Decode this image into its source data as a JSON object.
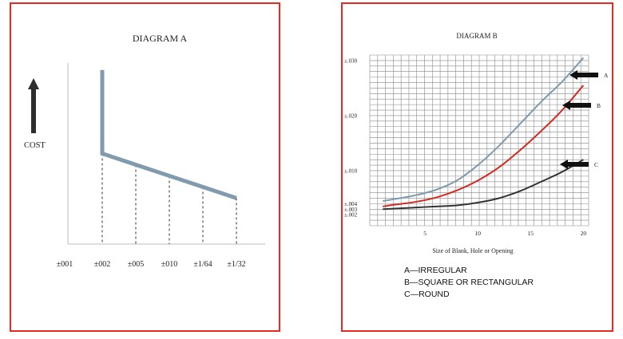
{
  "chart_data": [
    {
      "type": "line",
      "title": "DIAGRAM A",
      "ylabel": "COST",
      "categories": [
        "±001",
        "±002",
        "±005",
        "±010",
        "±1/64",
        "±1/32"
      ],
      "series": [
        {
          "values": [
            null,
            6.5,
            5.7,
            4.9,
            4.1,
            3.3
          ]
        }
      ],
      "vertical_segment_at": "±002",
      "vertical_segment_top": 12.5,
      "dashed_drop_lines": [
        "±002",
        "±005",
        "±010",
        "±1/64",
        "±1/32"
      ],
      "colors": {
        "line": "#7f9bad",
        "arrow": "#2e2e2e"
      }
    },
    {
      "type": "line",
      "title": "DIAGRAM B",
      "xlabel": "Size of Blank, Hole or Opening",
      "ylabel": "",
      "xlim": [
        0,
        20
      ],
      "ylim": [
        0,
        0.031
      ],
      "x_ticks": [
        5,
        10,
        15,
        20
      ],
      "y_ticks": [
        {
          "value": 0.002,
          "label": "±.002"
        },
        {
          "value": 0.003,
          "label": "±.003"
        },
        {
          "value": 0.004,
          "label": "±.004"
        },
        {
          "value": 0.01,
          "label": "±.010"
        },
        {
          "value": 0.02,
          "label": "±.020"
        },
        {
          "value": 0.03,
          "label": "±.030"
        }
      ],
      "grid": true,
      "x": [
        1,
        2,
        4,
        6,
        8,
        10,
        12,
        14,
        16,
        18,
        20
      ],
      "series": [
        {
          "name": "A",
          "color": "#7f9bad",
          "values": [
            0.0045,
            0.0048,
            0.0055,
            0.0065,
            0.0082,
            0.011,
            0.0145,
            0.0185,
            0.0225,
            0.0262,
            0.0305
          ]
        },
        {
          "name": "B",
          "color": "#d32a22",
          "values": [
            0.0035,
            0.0038,
            0.0043,
            0.0051,
            0.0064,
            0.0082,
            0.0106,
            0.0137,
            0.0172,
            0.021,
            0.0255
          ]
        },
        {
          "name": "C",
          "color": "#333333",
          "values": [
            0.003,
            0.0031,
            0.0033,
            0.0035,
            0.0037,
            0.0042,
            0.005,
            0.0063,
            0.008,
            0.0098,
            0.012
          ]
        }
      ],
      "legend": [
        {
          "key": "A",
          "text": "A—IRREGULAR"
        },
        {
          "key": "B",
          "text": "B—SQUARE OR RECTANGULAR"
        },
        {
          "key": "C",
          "text": "C—ROUND"
        }
      ],
      "arrow_labels": [
        "A",
        "B",
        "C"
      ]
    }
  ]
}
